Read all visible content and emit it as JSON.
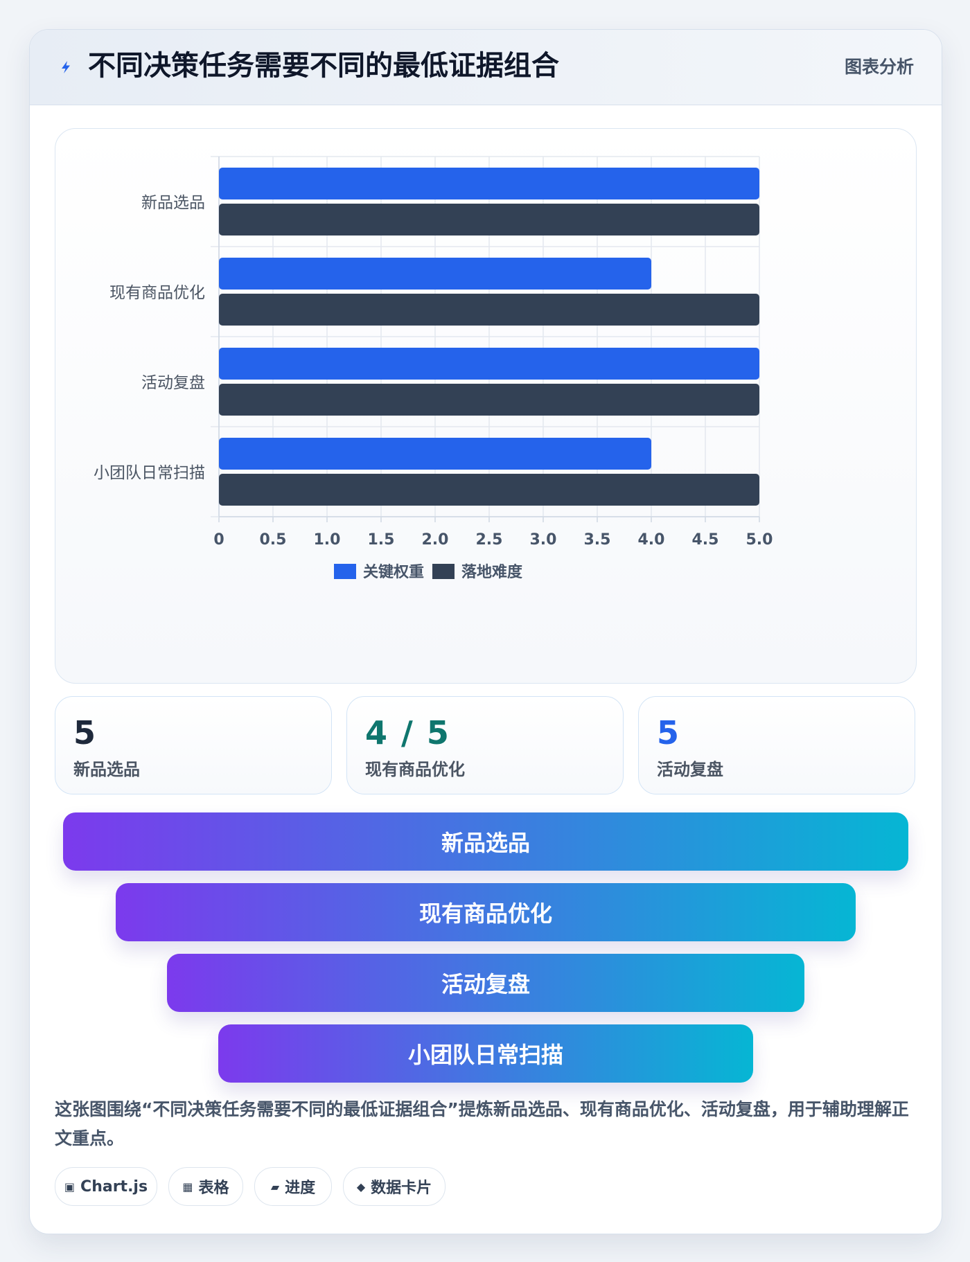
{
  "header": {
    "title": "不同决策任务需要不同的最低证据组合",
    "tag": "图表分析",
    "icon": "lightning-icon"
  },
  "chart_data": {
    "type": "bar",
    "orientation": "horizontal",
    "categories": [
      "新品选品",
      "现有商品优化",
      "活动复盘",
      "小团队日常扫描"
    ],
    "series": [
      {
        "name": "关键权重",
        "color": "#2563eb",
        "values": [
          5,
          4,
          5,
          4
        ]
      },
      {
        "name": "落地难度",
        "color": "#334155",
        "values": [
          5,
          5,
          5,
          5
        ]
      }
    ],
    "xlim": [
      0,
      5
    ],
    "x_ticks": [
      "0",
      "0.5",
      "1.0",
      "1.5",
      "2.0",
      "2.5",
      "3.0",
      "3.5",
      "4.0",
      "4.5",
      "5.0"
    ],
    "grid": true,
    "legend": "bottom"
  },
  "stats": [
    {
      "value": "5",
      "label": "新品选品",
      "color": "#1e293b"
    },
    {
      "value": "4 / 5",
      "label": "现有商品优化",
      "color": "#0f766e"
    },
    {
      "value": "5",
      "label": "活动复盘",
      "color": "#2563eb"
    }
  ],
  "funnel": {
    "gradient_start": "#7c3aed",
    "gradient_end": "#06b6d4",
    "items": [
      "新品选品",
      "现有商品优化",
      "活动复盘",
      "小团队日常扫描"
    ]
  },
  "caption": "这张图围绕“不同决策任务需要不同的最低证据组合”提炼新品选品、现有商品优化、活动复盘，用于辅助理解正文重点。",
  "chips": [
    {
      "icon": "chart-square-icon",
      "glyph": "▣",
      "label": "Chart.js"
    },
    {
      "icon": "table-icon",
      "glyph": "▦",
      "label": "表格"
    },
    {
      "icon": "progress-icon",
      "glyph": "▰",
      "label": "进度"
    },
    {
      "icon": "diamond-icon",
      "glyph": "◆",
      "label": "数据卡片"
    }
  ]
}
